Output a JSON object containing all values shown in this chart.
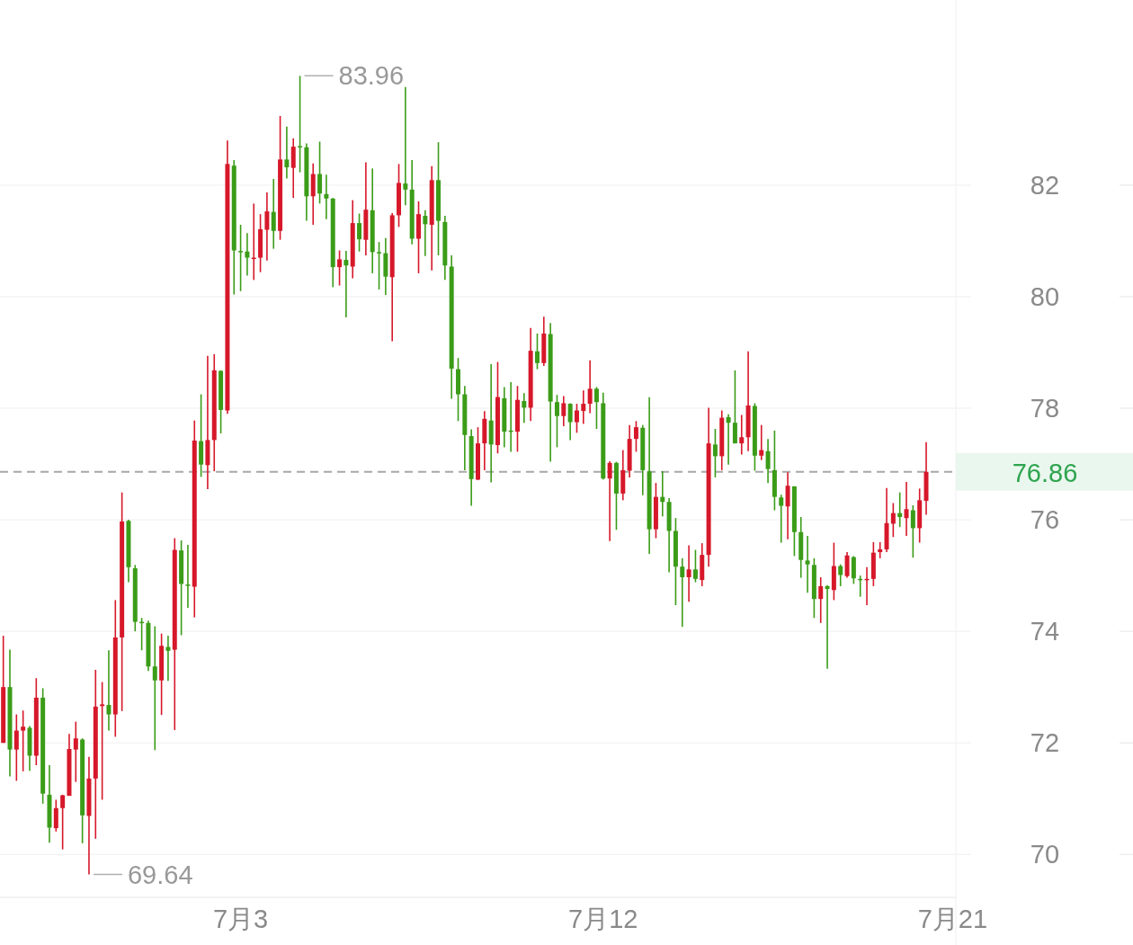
{
  "chart_data": {
    "type": "candlestick",
    "categories": [
      null,
      null,
      null,
      null,
      null,
      null,
      null,
      null,
      null,
      null,
      null,
      null,
      null,
      null,
      null,
      null,
      null,
      null,
      null,
      null,
      null,
      null,
      null,
      null,
      null,
      null,
      null,
      null,
      null,
      null,
      null,
      null,
      null,
      null,
      null,
      null,
      "7月3",
      null,
      null,
      null,
      null,
      null,
      null,
      null,
      null,
      null,
      null,
      null,
      null,
      null,
      null,
      null,
      null,
      null,
      null,
      null,
      null,
      null,
      null,
      null,
      null,
      null,
      null,
      null,
      null,
      null,
      null,
      null,
      null,
      null,
      null,
      null,
      null,
      null,
      null,
      null,
      null,
      null,
      null,
      null,
      null,
      null,
      null,
      null,
      null,
      null,
      null,
      null,
      null,
      null,
      null,
      "7月12",
      null,
      null,
      null,
      null,
      null,
      null,
      null,
      null,
      null,
      null,
      null,
      null,
      null,
      null,
      null,
      null,
      null,
      null,
      null,
      null,
      null,
      null,
      null,
      null,
      null,
      null,
      null,
      null,
      null,
      null,
      null,
      null,
      null,
      null,
      null,
      null,
      null,
      null,
      null,
      null,
      null,
      null,
      null,
      null,
      null,
      null,
      null,
      null,
      null,
      null,
      null,
      null,
      "7月21"
    ],
    "ohlc": [
      [
        72.0,
        73.92,
        72.0,
        73.0
      ],
      [
        73.0,
        73.67,
        71.4,
        71.88
      ],
      [
        71.88,
        72.51,
        71.32,
        72.22
      ],
      [
        72.22,
        72.58,
        71.49,
        72.29
      ],
      [
        72.27,
        72.3,
        71.5,
        71.77
      ],
      [
        71.77,
        73.16,
        71.6,
        72.81
      ],
      [
        72.81,
        72.98,
        70.91,
        71.09
      ],
      [
        71.07,
        71.6,
        70.21,
        70.48
      ],
      [
        70.47,
        70.98,
        70.41,
        70.83
      ],
      [
        70.83,
        71.07,
        70.09,
        71.06
      ],
      [
        71.05,
        72.16,
        71.05,
        71.89
      ],
      [
        71.88,
        72.38,
        71.3,
        72.08
      ],
      [
        72.06,
        72.08,
        70.2,
        70.7
      ],
      [
        70.69,
        71.75,
        69.64,
        71.36
      ],
      [
        71.36,
        73.31,
        70.28,
        72.65
      ],
      [
        72.66,
        73.09,
        70.98,
        72.69
      ],
      [
        72.68,
        73.66,
        72.22,
        72.51
      ],
      [
        72.51,
        74.56,
        72.11,
        73.89
      ],
      [
        73.89,
        76.49,
        72.57,
        75.97
      ],
      [
        75.98,
        76.0,
        74.88,
        75.15
      ],
      [
        75.13,
        75.19,
        74.0,
        74.17
      ],
      [
        74.17,
        74.24,
        73.66,
        74.15
      ],
      [
        74.15,
        74.19,
        73.29,
        73.37
      ],
      [
        73.37,
        74.09,
        71.87,
        73.12
      ],
      [
        73.12,
        73.96,
        72.5,
        73.74
      ],
      [
        73.72,
        73.92,
        73.11,
        73.65
      ],
      [
        73.67,
        75.67,
        72.23,
        75.46
      ],
      [
        75.45,
        75.63,
        73.93,
        74.85
      ],
      [
        74.84,
        75.55,
        74.42,
        74.82
      ],
      [
        74.8,
        77.78,
        74.25,
        77.42
      ],
      [
        77.41,
        78.25,
        76.77,
        76.99
      ],
      [
        76.98,
        78.94,
        76.55,
        77.43
      ],
      [
        77.43,
        78.97,
        76.87,
        78.68
      ],
      [
        78.67,
        78.68,
        77.55,
        77.97
      ],
      [
        77.96,
        82.8,
        77.9,
        82.38
      ],
      [
        82.35,
        82.45,
        80.04,
        80.83
      ],
      [
        80.82,
        81.29,
        80.1,
        80.81
      ],
      [
        80.81,
        81.14,
        80.38,
        80.7
      ],
      [
        80.69,
        81.67,
        80.3,
        80.7
      ],
      [
        80.7,
        81.48,
        80.44,
        81.21
      ],
      [
        81.2,
        81.87,
        80.65,
        81.53
      ],
      [
        81.52,
        82.11,
        80.86,
        81.18
      ],
      [
        81.18,
        83.24,
        81.02,
        82.46
      ],
      [
        82.46,
        83.05,
        82.12,
        82.32
      ],
      [
        82.31,
        82.84,
        81.77,
        82.69
      ],
      [
        82.7,
        83.96,
        82.23,
        82.68
      ],
      [
        82.68,
        82.75,
        81.36,
        81.8
      ],
      [
        81.8,
        82.39,
        81.29,
        82.2
      ],
      [
        82.2,
        82.78,
        81.67,
        81.85
      ],
      [
        81.84,
        82.19,
        81.39,
        81.76
      ],
      [
        81.76,
        81.77,
        80.17,
        80.53
      ],
      [
        80.53,
        80.83,
        80.2,
        80.67
      ],
      [
        80.66,
        80.82,
        79.63,
        80.56
      ],
      [
        80.54,
        81.73,
        80.33,
        81.32
      ],
      [
        81.32,
        81.49,
        80.81,
        81.03
      ],
      [
        81.02,
        82.41,
        80.74,
        81.56
      ],
      [
        81.55,
        82.3,
        80.42,
        80.8
      ],
      [
        80.8,
        80.98,
        80.13,
        80.79
      ],
      [
        80.78,
        81.05,
        80.03,
        80.36
      ],
      [
        80.35,
        81.5,
        79.2,
        81.46
      ],
      [
        81.46,
        82.38,
        81.25,
        82.04
      ],
      [
        82.03,
        83.76,
        81.64,
        81.92
      ],
      [
        81.92,
        82.45,
        80.94,
        81.04
      ],
      [
        81.04,
        81.71,
        80.42,
        81.48
      ],
      [
        81.45,
        81.55,
        80.73,
        81.3
      ],
      [
        81.29,
        82.34,
        80.47,
        82.09
      ],
      [
        82.09,
        82.77,
        80.74,
        81.36
      ],
      [
        81.34,
        81.45,
        80.3,
        80.56
      ],
      [
        80.54,
        80.74,
        78.17,
        78.71
      ],
      [
        78.7,
        78.9,
        77.77,
        78.25
      ],
      [
        78.25,
        78.4,
        76.89,
        77.52
      ],
      [
        77.5,
        77.62,
        76.25,
        76.73
      ],
      [
        76.72,
        77.66,
        76.71,
        77.37
      ],
      [
        77.37,
        77.95,
        76.89,
        77.81
      ],
      [
        77.78,
        78.79,
        76.67,
        77.35
      ],
      [
        77.34,
        78.83,
        77.19,
        78.2
      ],
      [
        78.18,
        78.38,
        77.3,
        77.58
      ],
      [
        77.6,
        78.47,
        77.22,
        77.59
      ],
      [
        77.58,
        78.4,
        77.22,
        78.15
      ],
      [
        78.13,
        78.27,
        77.74,
        78.01
      ],
      [
        78.01,
        79.44,
        77.77,
        79.03
      ],
      [
        79.02,
        79.34,
        78.7,
        78.81
      ],
      [
        78.81,
        79.64,
        78.76,
        79.34
      ],
      [
        79.33,
        79.53,
        77.04,
        78.12
      ],
      [
        78.11,
        78.24,
        77.3,
        77.86
      ],
      [
        77.86,
        78.22,
        77.68,
        78.09
      ],
      [
        78.08,
        78.09,
        77.43,
        77.75
      ],
      [
        77.75,
        78.08,
        77.56,
        77.96
      ],
      [
        77.95,
        78.32,
        77.72,
        78.08
      ],
      [
        78.08,
        78.86,
        77.91,
        78.35
      ],
      [
        78.35,
        78.38,
        77.63,
        78.11
      ],
      [
        78.09,
        78.28,
        76.72,
        76.74
      ],
      [
        76.74,
        77.05,
        75.62,
        77.02
      ],
      [
        77.02,
        77.04,
        75.82,
        76.47
      ],
      [
        76.47,
        77.25,
        76.35,
        76.89
      ],
      [
        76.88,
        77.7,
        76.76,
        77.45
      ],
      [
        77.45,
        77.77,
        77.22,
        77.66
      ],
      [
        77.65,
        77.7,
        76.44,
        76.89
      ],
      [
        76.87,
        78.2,
        75.39,
        75.83
      ],
      [
        75.83,
        76.66,
        75.67,
        76.41
      ],
      [
        76.41,
        76.87,
        76.06,
        76.32
      ],
      [
        76.32,
        76.39,
        75.06,
        75.8
      ],
      [
        75.8,
        76.03,
        74.47,
        75.16
      ],
      [
        75.16,
        75.31,
        74.08,
        74.97
      ],
      [
        74.97,
        75.54,
        74.53,
        75.11
      ],
      [
        75.11,
        75.46,
        74.88,
        74.94
      ],
      [
        74.92,
        75.58,
        74.81,
        75.37
      ],
      [
        75.37,
        78.01,
        75.16,
        77.37
      ],
      [
        77.35,
        77.63,
        76.76,
        77.14
      ],
      [
        77.14,
        77.96,
        76.89,
        77.83
      ],
      [
        77.84,
        77.89,
        76.99,
        77.74
      ],
      [
        77.74,
        78.68,
        77.37,
        77.37
      ],
      [
        77.37,
        77.88,
        77.17,
        77.48
      ],
      [
        77.48,
        79.02,
        77.23,
        78.05
      ],
      [
        78.04,
        78.09,
        76.88,
        77.15
      ],
      [
        77.15,
        77.7,
        77.07,
        77.25
      ],
      [
        77.23,
        77.45,
        76.66,
        76.91
      ],
      [
        76.89,
        77.6,
        76.17,
        76.41
      ],
      [
        76.4,
        76.45,
        75.59,
        76.25
      ],
      [
        76.24,
        76.85,
        75.65,
        76.61
      ],
      [
        76.6,
        76.6,
        75.35,
        75.78
      ],
      [
        75.78,
        76.05,
        74.96,
        75.28
      ],
      [
        75.27,
        75.71,
        74.69,
        75.2
      ],
      [
        75.19,
        75.31,
        74.24,
        74.58
      ],
      [
        74.58,
        74.97,
        74.15,
        74.81
      ],
      [
        74.81,
        74.83,
        73.33,
        74.76
      ],
      [
        74.74,
        75.59,
        74.56,
        75.17
      ],
      [
        75.17,
        75.2,
        74.81,
        75.01
      ],
      [
        74.99,
        75.42,
        74.96,
        75.36
      ],
      [
        75.33,
        75.35,
        74.85,
        74.95
      ],
      [
        74.94,
        75.0,
        74.62,
        74.93
      ],
      [
        74.93,
        75.15,
        74.47,
        74.94
      ],
      [
        74.94,
        75.6,
        74.81,
        75.41
      ],
      [
        75.42,
        75.6,
        75.31,
        75.47
      ],
      [
        75.47,
        76.57,
        75.42,
        75.94
      ],
      [
        75.93,
        76.3,
        75.69,
        76.12
      ],
      [
        76.12,
        76.49,
        75.87,
        76.05
      ],
      [
        76.03,
        76.68,
        75.71,
        76.19
      ],
      [
        76.17,
        76.26,
        75.32,
        75.85
      ],
      [
        75.85,
        76.56,
        75.59,
        76.35
      ],
      [
        76.34,
        77.39,
        76.09,
        76.86
      ],
      null,
      null,
      null,
      null
    ],
    "colors": [
      "#d6182a",
      "#3b9c18",
      "#d6182a",
      "#d6182a",
      "#3b9c18",
      "#d6182a",
      "#3b9c18",
      "#3b9c18",
      "#d6182a",
      "#d6182a",
      "#d6182a",
      "#d6182a",
      "#3b9c18",
      "#d6182a",
      "#d6182a",
      "#d6182a",
      "#3b9c18",
      "#d6182a",
      "#d6182a",
      "#3b9c18",
      "#3b9c18",
      "#3b9c18",
      "#3b9c18",
      "#3b9c18",
      "#d6182a",
      "#3b9c18",
      "#d6182a",
      "#3b9c18",
      "#3b9c18",
      "#d6182a",
      "#3b9c18",
      "#d6182a",
      "#d6182a",
      "#3b9c18",
      "#d6182a",
      "#3b9c18",
      "#3b9c18",
      "#3b9c18",
      "#d6182a",
      "#d6182a",
      "#d6182a",
      "#3b9c18",
      "#d6182a",
      "#3b9c18",
      "#d6182a",
      "#3b9c18",
      "#3b9c18",
      "#d6182a",
      "#3b9c18",
      "#3b9c18",
      "#3b9c18",
      "#d6182a",
      "#3b9c18",
      "#d6182a",
      "#3b9c18",
      "#d6182a",
      "#3b9c18",
      "#3b9c18",
      "#3b9c18",
      "#d6182a",
      "#d6182a",
      "#3b9c18",
      "#3b9c18",
      "#d6182a",
      "#3b9c18",
      "#d6182a",
      "#3b9c18",
      "#3b9c18",
      "#3b9c18",
      "#3b9c18",
      "#3b9c18",
      "#3b9c18",
      "#d6182a",
      "#d6182a",
      "#3b9c18",
      "#d6182a",
      "#3b9c18",
      "#3b9c18",
      "#d6182a",
      "#3b9c18",
      "#d6182a",
      "#3b9c18",
      "#d6182a",
      "#3b9c18",
      "#3b9c18",
      "#d6182a",
      "#3b9c18",
      "#d6182a",
      "#d6182a",
      "#d6182a",
      "#3b9c18",
      "#3b9c18",
      "#d6182a",
      "#3b9c18",
      "#d6182a",
      "#d6182a",
      "#d6182a",
      "#3b9c18",
      "#3b9c18",
      "#d6182a",
      "#3b9c18",
      "#3b9c18",
      "#3b9c18",
      "#3b9c18",
      "#d6182a",
      "#3b9c18",
      "#d6182a",
      "#d6182a",
      "#3b9c18",
      "#d6182a",
      "#3b9c18",
      "#3b9c18",
      "#d6182a",
      "#d6182a",
      "#3b9c18",
      "#d6182a",
      "#3b9c18",
      "#3b9c18",
      "#3b9c18",
      "#d6182a",
      "#3b9c18",
      "#3b9c18",
      "#3b9c18",
      "#3b9c18",
      "#d6182a",
      "#3b9c18",
      "#d6182a",
      "#3b9c18",
      "#d6182a",
      "#3b9c18",
      "#3b9c18",
      "#d6182a",
      "#d6182a",
      "#d6182a",
      "#d6182a",
      "#d6182a",
      "#3b9c18",
      "#d6182a",
      "#3b9c18",
      "#d6182a",
      "#d6182a",
      null,
      null,
      null,
      null
    ],
    "ylim": [
      69.23,
      85.32
    ],
    "yticks": [
      70,
      72,
      74,
      76,
      78,
      80,
      82
    ],
    "grid": "y",
    "ref_lines": [
      {
        "axis": "y",
        "value": 76.86,
        "label": "76.86",
        "color": "#a8a8a8",
        "line_style": "dashed"
      }
    ],
    "annotations": [
      "83.96",
      "69.64"
    ]
  }
}
